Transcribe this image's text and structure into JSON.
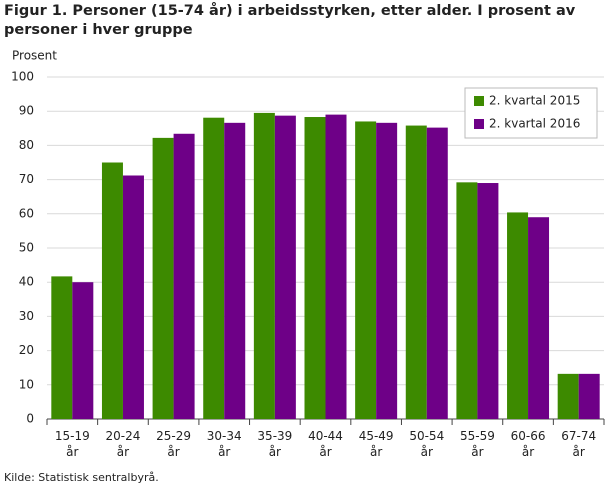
{
  "chart_data": {
    "type": "bar",
    "title": "Figur 1. Personer (15-74 år) i arbeidsstyrken, etter alder. I prosent av personer i hver gruppe",
    "y_label": "Prosent",
    "source": "Kilde: Statistisk sentralbyrå.",
    "categories": [
      "15-19 år",
      "20-24 år",
      "25-29 år",
      "30-34 år",
      "35-39 år",
      "40-44 år",
      "45-49 år",
      "50-54 år",
      "55-59 år",
      "60-66 år",
      "67-74 år"
    ],
    "series": [
      {
        "name": "2. kvartal 2015",
        "color": "#3d8a00",
        "values": [
          41.7,
          75.0,
          82.2,
          88.1,
          89.5,
          88.3,
          87.0,
          85.8,
          69.2,
          60.4,
          13.2
        ]
      },
      {
        "name": "2. kvartal 2016",
        "color": "#6e0087",
        "values": [
          40.0,
          71.2,
          83.4,
          86.6,
          88.7,
          89.0,
          86.6,
          85.2,
          69.0,
          59.0,
          13.2
        ]
      }
    ],
    "ylim": [
      0,
      100
    ],
    "yticks": [
      0,
      10,
      20,
      30,
      40,
      50,
      60,
      70,
      80,
      90,
      100
    ],
    "grid": true,
    "legend": "top-right"
  }
}
